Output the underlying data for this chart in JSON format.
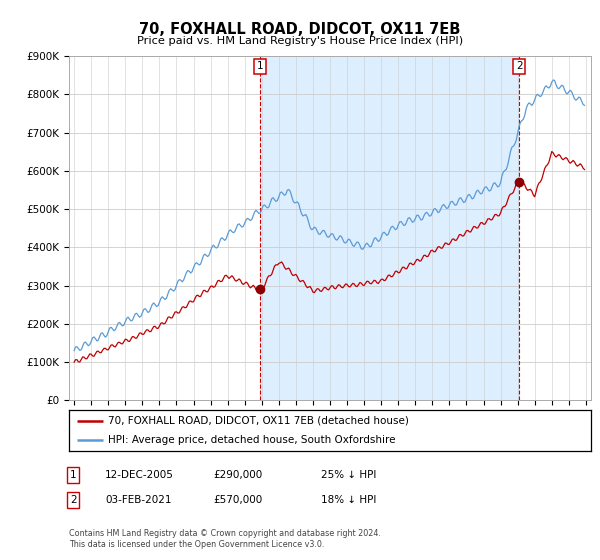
{
  "title": "70, FOXHALL ROAD, DIDCOT, OX11 7EB",
  "subtitle": "Price paid vs. HM Land Registry's House Price Index (HPI)",
  "ylim": [
    0,
    900000
  ],
  "yticks": [
    0,
    100000,
    200000,
    300000,
    400000,
    500000,
    600000,
    700000,
    800000,
    900000
  ],
  "ytick_labels": [
    "£0",
    "£100K",
    "£200K",
    "£300K",
    "£400K",
    "£500K",
    "£600K",
    "£700K",
    "£800K",
    "£900K"
  ],
  "hpi_color": "#5b9bd5",
  "price_color": "#c00000",
  "marker_color": "#8b0000",
  "annotation_box_color": "#cc0000",
  "background_color": "#ffffff",
  "fill_color": "#ddeeff",
  "grid_color": "#cccccc",
  "legend_line1": "70, FOXHALL ROAD, DIDCOT, OX11 7EB (detached house)",
  "legend_line2": "HPI: Average price, detached house, South Oxfordshire",
  "sale1_date": "12-DEC-2005",
  "sale1_price": "£290,000",
  "sale1_note": "25% ↓ HPI",
  "sale2_date": "03-FEB-2021",
  "sale2_price": "£570,000",
  "sale2_note": "18% ↓ HPI",
  "footer": "Contains HM Land Registry data © Crown copyright and database right 2024.\nThis data is licensed under the Open Government Licence v3.0.",
  "sale1_year": 2005.917,
  "sale1_value": 290000,
  "sale2_year": 2021.083,
  "sale2_value": 570000,
  "xlim_left": 1994.7,
  "xlim_right": 2025.3
}
